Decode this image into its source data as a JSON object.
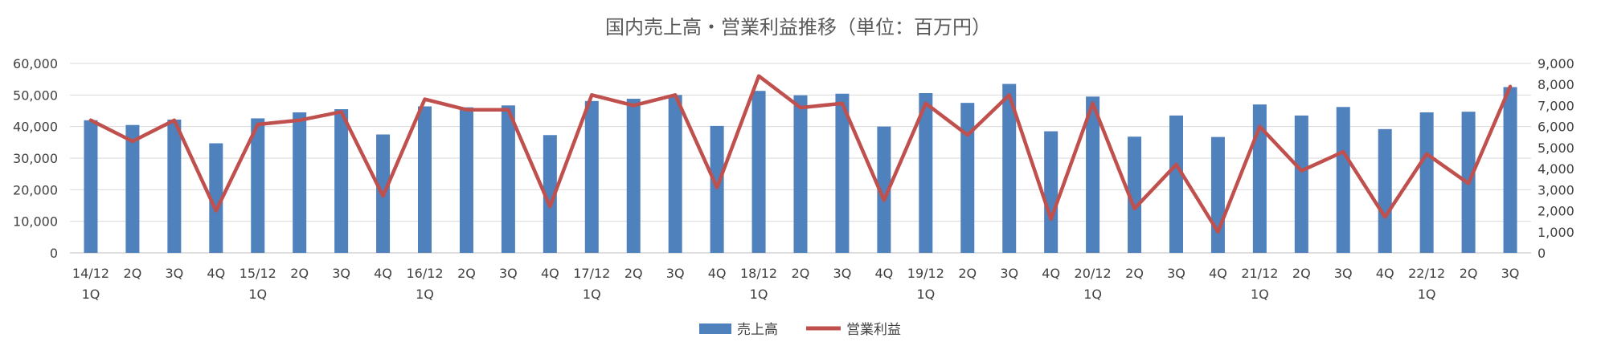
{
  "chart_data": {
    "type": "bar+line",
    "title": "国内売上高・営業利益推移（単位：百万円）",
    "categories": [
      [
        "14/12",
        "1Q"
      ],
      [
        "2Q"
      ],
      [
        "3Q"
      ],
      [
        "4Q"
      ],
      [
        "15/12",
        "1Q"
      ],
      [
        "2Q"
      ],
      [
        "3Q"
      ],
      [
        "4Q"
      ],
      [
        "16/12",
        "1Q"
      ],
      [
        "2Q"
      ],
      [
        "3Q"
      ],
      [
        "4Q"
      ],
      [
        "17/12",
        "1Q"
      ],
      [
        "2Q"
      ],
      [
        "3Q"
      ],
      [
        "4Q"
      ],
      [
        "18/12",
        "1Q"
      ],
      [
        "2Q"
      ],
      [
        "3Q"
      ],
      [
        "4Q"
      ],
      [
        "19/12",
        "1Q"
      ],
      [
        "2Q"
      ],
      [
        "3Q"
      ],
      [
        "4Q"
      ],
      [
        "20/12",
        "1Q"
      ],
      [
        "2Q"
      ],
      [
        "3Q"
      ],
      [
        "4Q"
      ],
      [
        "21/12",
        "1Q"
      ],
      [
        "2Q"
      ],
      [
        "3Q"
      ],
      [
        "4Q"
      ],
      [
        "22/12",
        "1Q"
      ],
      [
        "2Q"
      ],
      [
        "3Q"
      ]
    ],
    "series": [
      {
        "name": "売上高",
        "type": "bar",
        "axis": "left",
        "color": "#4f81bd",
        "values": [
          42000,
          40500,
          42200,
          34700,
          42600,
          44500,
          45500,
          37500,
          46400,
          46100,
          46700,
          37300,
          48100,
          48800,
          50000,
          40200,
          51300,
          49900,
          50400,
          40000,
          50600,
          47500,
          53500,
          38500,
          49500,
          36800,
          43500,
          36700,
          47000,
          43500,
          46200,
          39200,
          44500,
          44700,
          52500
        ]
      },
      {
        "name": "営業利益",
        "type": "line",
        "axis": "right",
        "color": "#c0504d",
        "values": [
          6300,
          5300,
          6300,
          2000,
          6100,
          6300,
          6700,
          2700,
          7300,
          6800,
          6800,
          2200,
          7500,
          7000,
          7500,
          3100,
          8400,
          6900,
          7100,
          2500,
          7100,
          5600,
          7500,
          1600,
          7100,
          2100,
          4200,
          1000,
          6000,
          3900,
          4800,
          1700,
          4700,
          3300,
          7900
        ]
      }
    ],
    "y_left": {
      "min": 0,
      "max": 60000,
      "step": 10000,
      "tick_labels": [
        "0",
        "10,000",
        "20,000",
        "30,000",
        "40,000",
        "50,000",
        "60,000"
      ]
    },
    "y_right": {
      "min": 0,
      "max": 9000,
      "step": 1000,
      "tick_labels": [
        "0",
        "1,000",
        "2,000",
        "3,000",
        "4,000",
        "5,000",
        "6,000",
        "7,000",
        "8,000",
        "9,000"
      ]
    },
    "grid": true,
    "legend": {
      "placement": "bottom"
    }
  }
}
